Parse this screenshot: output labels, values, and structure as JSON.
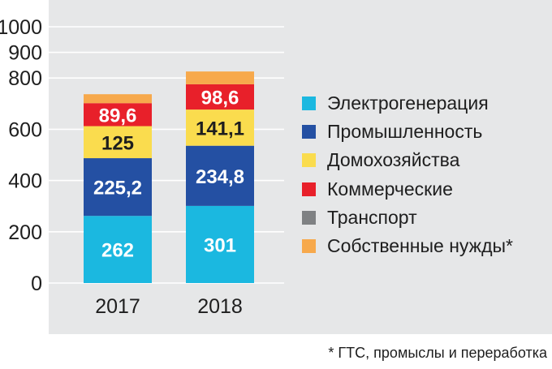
{
  "chart_data": {
    "type": "bar",
    "stacked": true,
    "categories": [
      "2017",
      "2018"
    ],
    "y_ticks": [
      "0",
      "200",
      "400",
      "600",
      "800",
      "900",
      "1000"
    ],
    "ylim": [
      0,
      1000
    ],
    "series": [
      {
        "name": "Электрогенерация",
        "color": "#1bb8e0",
        "values": [
          262,
          301
        ],
        "labels": [
          "262",
          "301"
        ],
        "label_color": "#ffffff"
      },
      {
        "name": "Промышленность",
        "color": "#2450a3",
        "values": [
          225.2,
          234.8
        ],
        "labels": [
          "225,2",
          "234,8"
        ],
        "label_color": "#ffffff"
      },
      {
        "name": "Домохозяйства",
        "color": "#fadc4e",
        "values": [
          125,
          141.1
        ],
        "labels": [
          "125",
          "141,1"
        ],
        "label_color": "#1e1e1e"
      },
      {
        "name": "Коммерческие",
        "color": "#e8202a",
        "values": [
          89.6,
          98.6
        ],
        "labels": [
          "89,6",
          "98,6"
        ],
        "label_color": "#ffffff"
      },
      {
        "name": "Транспорт",
        "color": "#7f8183",
        "values": [
          0,
          0
        ],
        "labels": [
          "",
          ""
        ],
        "label_color": "#ffffff"
      },
      {
        "name": "Собственные нужды*",
        "color": "#f7a94c",
        "values": [
          35,
          50
        ],
        "labels": [
          "",
          ""
        ],
        "label_color": "#1e1e1e"
      }
    ],
    "footnote": "* ГТС, промыслы и переработка",
    "legend_position": "right",
    "grid": true
  }
}
